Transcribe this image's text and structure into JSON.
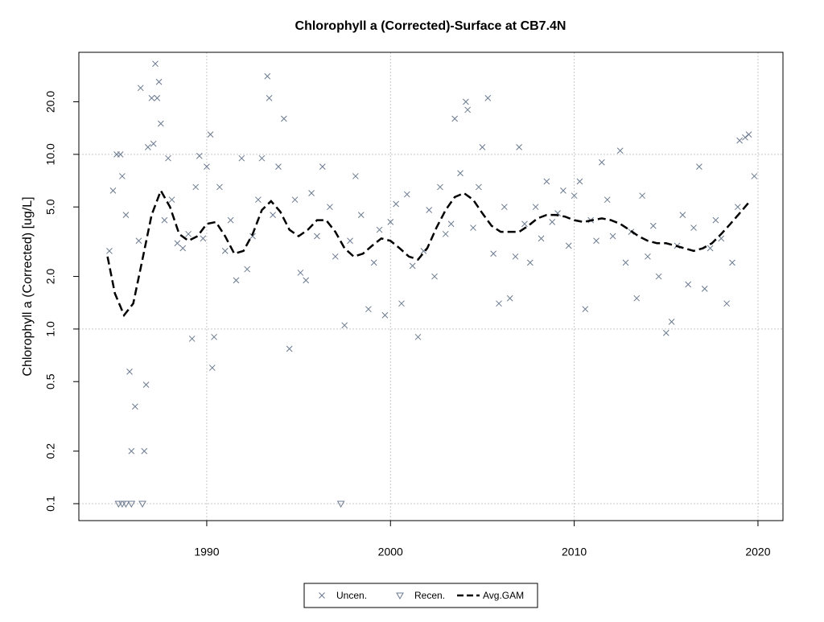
{
  "chart_data": {
    "type": "scatter",
    "title": "Chlorophyll a (Corrected)-Surface at CB7.4N",
    "y_label": "Chlorophyll a (Corrected) [ug/L]",
    "y_log": true,
    "xlim": [
      1983.04,
      2021.36
    ],
    "ylim": [
      0.08,
      38.4
    ],
    "xticks": [
      1990,
      2000,
      2010,
      2020
    ],
    "yticks": [
      0.1,
      0.2,
      0.5,
      {
        "value": 1,
        "label": "1.0"
      },
      {
        "value": 2,
        "label": "2.0"
      },
      {
        "value": 5,
        "label": "5.0"
      },
      {
        "value": 10,
        "label": "10.0"
      },
      {
        "value": 20,
        "label": "20.0"
      }
    ],
    "grid": true,
    "y_grid_lines": [
      0.1,
      1,
      10
    ],
    "legend": "bottom",
    "series": [
      {
        "name": "Uncen.",
        "marker": "cross",
        "color": "#6b7a8f",
        "x": [
          1984.7,
          1984.9,
          1985.1,
          1985.3,
          1985.4,
          1985.6,
          1985.8,
          1985.9,
          1986.1,
          1986.3,
          1986.4,
          1986.6,
          1986.7,
          1986.8,
          1987.0,
          1987.1,
          1987.2,
          1987.3,
          1987.4,
          1987.5,
          1987.7,
          1987.9,
          1988.1,
          1988.4,
          1988.7,
          1989.0,
          1989.2,
          1989.4,
          1989.6,
          1989.8,
          1990.0,
          1990.2,
          1990.3,
          1990.4,
          1990.7,
          1991.0,
          1991.3,
          1991.6,
          1991.9,
          1992.2,
          1992.5,
          1992.8,
          1993.0,
          1993.3,
          1993.4,
          1993.6,
          1993.9,
          1994.2,
          1994.5,
          1994.8,
          1995.1,
          1995.4,
          1995.7,
          1996.0,
          1996.3,
          1996.7,
          1997.0,
          1997.5,
          1997.8,
          1998.1,
          1998.4,
          1998.8,
          1999.1,
          1999.4,
          1999.7,
          2000.0,
          2000.3,
          2000.6,
          2000.9,
          2001.2,
          2001.5,
          2001.8,
          2002.1,
          2002.4,
          2002.7,
          2003.0,
          2003.3,
          2003.5,
          2003.8,
          2004.1,
          2004.2,
          2004.5,
          2004.8,
          2005.0,
          2005.3,
          2005.6,
          2005.9,
          2006.2,
          2006.5,
          2006.8,
          2007.0,
          2007.3,
          2007.6,
          2007.9,
          2008.2,
          2008.5,
          2008.8,
          2009.1,
          2009.4,
          2009.7,
          2010.0,
          2010.3,
          2010.6,
          2010.9,
          2011.2,
          2011.5,
          2011.8,
          2012.1,
          2012.5,
          2012.8,
          2013.1,
          2013.4,
          2013.7,
          2014.0,
          2014.3,
          2014.6,
          2015.0,
          2015.3,
          2015.6,
          2015.9,
          2016.2,
          2016.5,
          2016.8,
          2017.1,
          2017.4,
          2017.7,
          2018.0,
          2018.3,
          2018.6,
          2018.9,
          2019.0,
          2019.3,
          2019.5,
          2019.8
        ],
        "values": [
          2.8,
          6.2,
          10,
          10,
          7.5,
          4.5,
          0.57,
          0.2,
          0.36,
          3.2,
          24,
          0.2,
          0.48,
          11,
          21,
          11.5,
          33,
          21,
          26,
          15,
          4.2,
          9.5,
          5.5,
          3.1,
          2.9,
          3.5,
          0.88,
          6.5,
          9.8,
          3.3,
          8.5,
          13,
          0.6,
          0.9,
          6.5,
          2.8,
          4.2,
          1.9,
          9.5,
          2.2,
          3.4,
          5.5,
          9.5,
          28,
          21,
          4.5,
          8.5,
          16,
          0.77,
          5.5,
          2.1,
          1.9,
          6.0,
          3.4,
          8.5,
          5.0,
          2.6,
          1.05,
          3.2,
          7.5,
          4.5,
          1.3,
          2.4,
          3.7,
          1.2,
          4.1,
          5.2,
          1.4,
          5.9,
          2.3,
          0.9,
          2.8,
          4.8,
          2.0,
          6.5,
          3.5,
          4.0,
          16,
          7.8,
          20,
          18,
          3.8,
          6.5,
          11,
          21,
          2.7,
          1.4,
          5.0,
          1.5,
          2.6,
          11,
          4.0,
          2.4,
          5.0,
          3.3,
          7.0,
          4.1,
          4.6,
          6.2,
          3.0,
          5.8,
          7.0,
          1.3,
          4.2,
          3.2,
          9.0,
          5.5,
          3.4,
          10.5,
          2.4,
          3.6,
          1.5,
          5.8,
          2.6,
          3.9,
          2.0,
          0.95,
          1.1,
          3.0,
          4.5,
          1.8,
          3.8,
          8.5,
          1.7,
          2.9,
          4.2,
          3.3,
          1.4,
          2.4,
          5.0,
          12,
          12.5,
          13,
          7.5
        ]
      },
      {
        "name": "Recen.",
        "marker": "triangle",
        "color": "#6b7a8f",
        "x": [
          1985.2,
          1985.4,
          1985.6,
          1985.9,
          1986.5,
          1997.3
        ],
        "values": [
          0.1,
          0.1,
          0.1,
          0.1,
          0.1,
          0.1
        ]
      },
      {
        "name": "Avg.GAM",
        "marker": "dashed-line",
        "color": "#000000",
        "x": [
          1984.6,
          1985.0,
          1985.5,
          1986.0,
          1986.5,
          1987.0,
          1987.5,
          1988.0,
          1988.5,
          1989.0,
          1989.5,
          1990.0,
          1990.5,
          1991.0,
          1991.5,
          1992.0,
          1992.5,
          1993.0,
          1993.5,
          1994.0,
          1994.5,
          1995.0,
          1995.5,
          1996.0,
          1996.5,
          1997.0,
          1997.5,
          1998.0,
          1998.5,
          1999.0,
          1999.5,
          2000.0,
          2000.5,
          2001.0,
          2001.5,
          2002.0,
          2002.5,
          2003.0,
          2003.5,
          2004.0,
          2004.5,
          2005.0,
          2005.5,
          2006.0,
          2006.5,
          2007.0,
          2007.5,
          2008.0,
          2008.5,
          2009.0,
          2009.5,
          2010.0,
          2010.5,
          2011.0,
          2011.5,
          2012.0,
          2012.5,
          2013.0,
          2013.5,
          2014.0,
          2014.5,
          2015.0,
          2015.5,
          2016.0,
          2016.5,
          2017.0,
          2017.5,
          2018.0,
          2018.5,
          2019.0,
          2019.5
        ],
        "values": [
          2.6,
          1.6,
          1.2,
          1.4,
          2.5,
          4.5,
          6.2,
          5.0,
          3.5,
          3.2,
          3.4,
          4.0,
          4.1,
          3.4,
          2.7,
          2.8,
          3.5,
          4.8,
          5.4,
          4.7,
          3.7,
          3.4,
          3.7,
          4.2,
          4.2,
          3.6,
          2.9,
          2.6,
          2.7,
          3.0,
          3.3,
          3.2,
          2.9,
          2.6,
          2.5,
          2.9,
          3.8,
          4.8,
          5.7,
          6.0,
          5.5,
          4.6,
          3.9,
          3.6,
          3.6,
          3.6,
          3.9,
          4.3,
          4.5,
          4.5,
          4.4,
          4.2,
          4.1,
          4.2,
          4.3,
          4.2,
          4.0,
          3.7,
          3.4,
          3.2,
          3.1,
          3.1,
          3.0,
          2.9,
          2.8,
          2.9,
          3.1,
          3.5,
          4.0,
          4.6,
          5.3
        ]
      }
    ]
  }
}
